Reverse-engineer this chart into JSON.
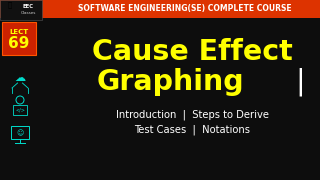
{
  "bg_color": "#0d0d0d",
  "top_bar_color": "#dd3300",
  "top_bar_text": "SOFTWARE ENGINEERING(SE) COMPLETE COURSE",
  "top_bar_text_color": "#ffffff",
  "top_bar_height": 18,
  "logo_box_color": "#111111",
  "logo_box_border": "#555555",
  "logo_text1": "EEC Classes",
  "logo_text_color": "#dddddd",
  "lect_box_color": "#cc2200",
  "lect_box_border": "#ff4400",
  "lect_text": "LECT",
  "lect_num": "69",
  "lect_text_color": "#ffff00",
  "icon_color": "#00ddcc",
  "main_title_line1": "Cause Effect",
  "main_title_line2": "Graphing",
  "main_title_color": "#ffff00",
  "pipe_char": "|",
  "pipe_color": "#ffffff",
  "subtitle_line1": "Introduction  |  Steps to Derive",
  "subtitle_line2": "Test Cases  |  Notations",
  "subtitle_color": "#ffffff",
  "title_fontsize": 20.5,
  "subtitle_fontsize": 7.2
}
